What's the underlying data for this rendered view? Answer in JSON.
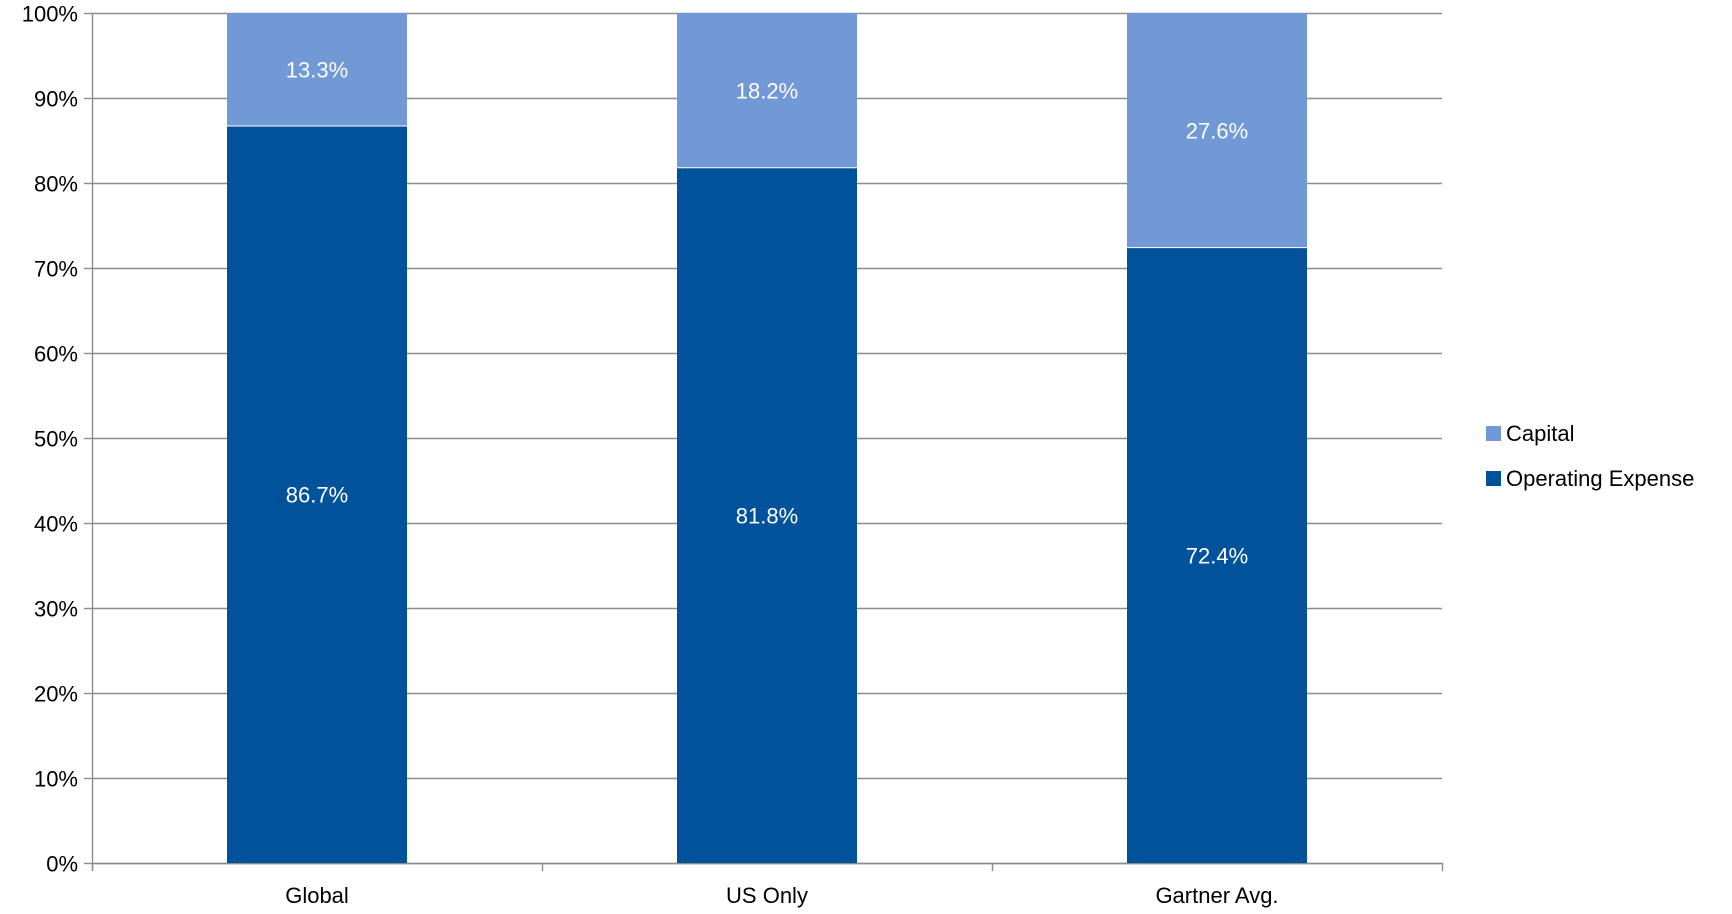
{
  "chart_data": {
    "type": "bar",
    "stacked": true,
    "categories": [
      "Global",
      "US Only",
      "Gartner Avg."
    ],
    "series": [
      {
        "name": "Operating Expense",
        "values": [
          86.7,
          81.8,
          72.4
        ],
        "labels": [
          "86.7%",
          "81.8%",
          "72.4%"
        ],
        "color": "#00539b"
      },
      {
        "name": "Capital",
        "values": [
          13.3,
          18.2,
          27.6
        ],
        "labels": [
          "13.3%",
          "18.2%",
          "27.6%"
        ],
        "color": "#7199d6"
      }
    ],
    "ylim": [
      0,
      100
    ],
    "yticks": [
      0,
      10,
      20,
      30,
      40,
      50,
      60,
      70,
      80,
      90,
      100
    ],
    "ytick_labels": [
      "0%",
      "10%",
      "20%",
      "30%",
      "40%",
      "50%",
      "60%",
      "70%",
      "80%",
      "90%",
      "100%"
    ],
    "title": "",
    "xlabel": "",
    "ylabel": "",
    "grid": true,
    "legend": {
      "placement": "right",
      "entries": [
        "Capital",
        "Operating Expense"
      ]
    }
  }
}
